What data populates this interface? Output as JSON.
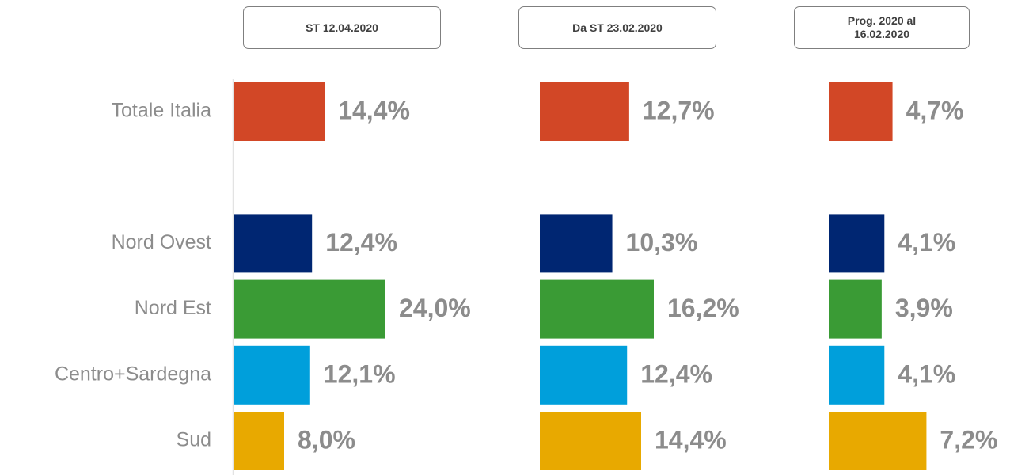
{
  "chart_data": [
    {
      "type": "bar",
      "orientation": "horizontal",
      "title": "ST 12.04.2020",
      "categories": [
        "Totale Italia",
        null,
        "Nord Ovest",
        "Nord Est",
        "Centro+Sardegna",
        "Sud"
      ],
      "values": [
        14.4,
        null,
        12.4,
        24.0,
        12.1,
        8.0
      ],
      "value_labels": [
        "14,4%",
        null,
        "12,4%",
        "24,0%",
        "12,1%",
        "8,0%"
      ],
      "colors": [
        "#d24726",
        null,
        "#002672",
        "#3a9b35",
        "#009fdb",
        "#e8a900"
      ],
      "xlim": [
        0,
        30
      ]
    },
    {
      "type": "bar",
      "orientation": "horizontal",
      "title": "Da ST 23.02.2020",
      "values": [
        12.7,
        null,
        10.3,
        16.2,
        12.4,
        14.4
      ],
      "value_labels": [
        "12,7%",
        null,
        "10,3%",
        "16,2%",
        "12,4%",
        "14,4%"
      ],
      "colors": [
        "#d24726",
        null,
        "#002672",
        "#3a9b35",
        "#009fdb",
        "#e8a900"
      ],
      "xlim": [
        0,
        27
      ]
    },
    {
      "type": "bar",
      "orientation": "horizontal",
      "title": "Prog. 2020 al 16.02.2020",
      "values": [
        4.7,
        null,
        4.1,
        3.9,
        4.1,
        7.2
      ],
      "value_labels": [
        "4,7%",
        null,
        "4,1%",
        "3,9%",
        "4,1%",
        "7,2%"
      ],
      "colors": [
        "#d24726",
        null,
        "#002672",
        "#3a9b35",
        "#009fdb",
        "#e8a900"
      ],
      "xlim": [
        0,
        14
      ]
    }
  ]
}
